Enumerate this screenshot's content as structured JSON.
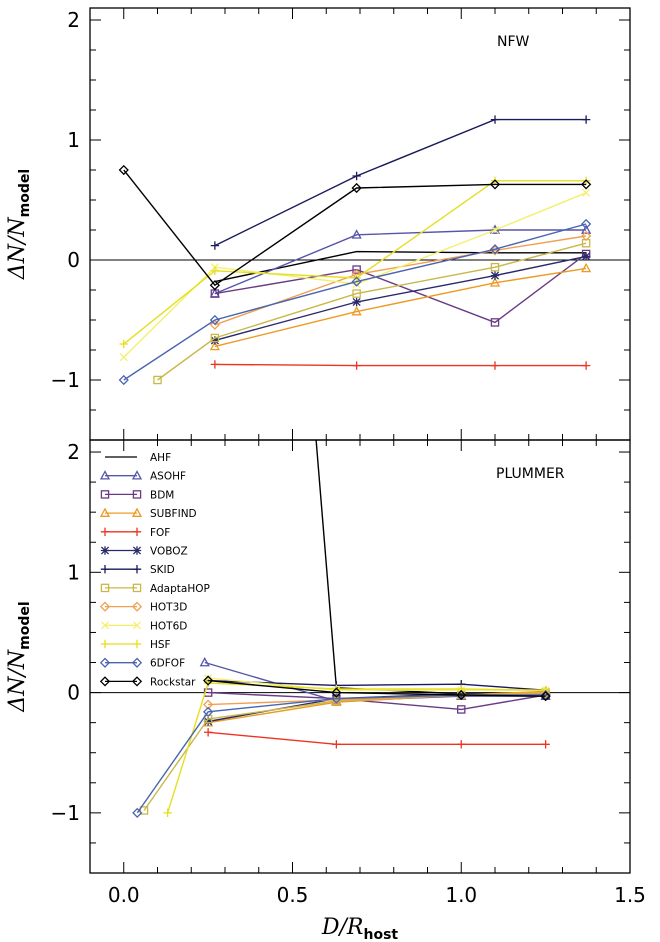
{
  "chart_data": {
    "type": "line",
    "x_tick_labels": [
      "0.0",
      "0.5",
      "1.0",
      "1.5"
    ],
    "x_ticks": [
      0,
      0.5,
      1.0,
      1.5
    ],
    "y_tick_labels": [
      "2",
      "1",
      "0",
      "−1"
    ],
    "y_ticks": [
      2,
      1,
      0,
      -1
    ],
    "xlim": [
      -0.1,
      1.5
    ],
    "xlabel": {
      "main": "D/R",
      "sub": "host"
    },
    "ylabel": {
      "main": "ΔN/N",
      "sub": "model"
    },
    "legend": {
      "placement": "upper-left of lower panel",
      "entries": [
        "AHF",
        "ASOHF",
        "BDM",
        "SUBFIND",
        "FOF",
        "VOBOZ",
        "SKID",
        "AdaptaHOP",
        "HOT3D",
        "HOT6D",
        "HSF",
        "6DFOF",
        "Rockstar"
      ]
    },
    "styles": {
      "AHF": {
        "color": "#000000",
        "marker": "none"
      },
      "ASOHF": {
        "color": "#5555aa",
        "marker": "triangle"
      },
      "BDM": {
        "color": "#6a3a86",
        "marker": "square"
      },
      "SUBFIND": {
        "color": "#ee9a22",
        "marker": "triangle"
      },
      "FOF": {
        "color": "#ee3322",
        "marker": "plus"
      },
      "VOBOZ": {
        "color": "#2a2a6a",
        "marker": "star"
      },
      "SKID": {
        "color": "#1a1a5a",
        "marker": "plus"
      },
      "AdaptaHOP": {
        "color": "#c8b84a",
        "marker": "square"
      },
      "HOT3D": {
        "color": "#f0a050",
        "marker": "diamond"
      },
      "HOT6D": {
        "color": "#f3f070",
        "marker": "x"
      },
      "HSF": {
        "color": "#e6de20",
        "marker": "plus"
      },
      "6DFOF": {
        "color": "#4a64b0",
        "marker": "diamond"
      },
      "Rockstar": {
        "color": "#000000",
        "marker": "diamond"
      }
    },
    "panels": [
      {
        "title": "NFW",
        "ylim": [
          -1.5,
          2.1
        ],
        "series": [
          {
            "name": "AHF",
            "points": [
              [
                0.27,
                -0.18
              ],
              [
                0.69,
                0.07
              ],
              [
                1.1,
                0.06
              ],
              [
                1.37,
                0.06
              ]
            ]
          },
          {
            "name": "ASOHF",
            "points": [
              [
                0.27,
                -0.28
              ],
              [
                0.69,
                0.21
              ],
              [
                1.1,
                0.25
              ],
              [
                1.37,
                0.25
              ]
            ]
          },
          {
            "name": "BDM",
            "points": [
              [
                0.27,
                -0.28
              ],
              [
                0.69,
                -0.08
              ],
              [
                1.1,
                -0.52
              ],
              [
                1.37,
                0.05
              ]
            ]
          },
          {
            "name": "SUBFIND",
            "points": [
              [
                0.27,
                -0.72
              ],
              [
                0.69,
                -0.43
              ],
              [
                1.1,
                -0.19
              ],
              [
                1.37,
                -0.07
              ]
            ]
          },
          {
            "name": "FOF",
            "points": [
              [
                0.27,
                -0.87
              ],
              [
                0.69,
                -0.88
              ],
              [
                1.1,
                -0.88
              ],
              [
                1.37,
                -0.88
              ]
            ]
          },
          {
            "name": "VOBOZ",
            "points": [
              [
                0.27,
                -0.67
              ],
              [
                0.69,
                -0.35
              ],
              [
                1.1,
                -0.13
              ],
              [
                1.37,
                0.03
              ]
            ]
          },
          {
            "name": "SKID",
            "points": [
              [
                0.27,
                0.12
              ],
              [
                0.69,
                0.7
              ],
              [
                1.1,
                1.17
              ],
              [
                1.37,
                1.17
              ]
            ]
          },
          {
            "name": "AdaptaHOP",
            "points": [
              [
                0.1,
                -1.0
              ],
              [
                0.27,
                -0.65
              ],
              [
                0.69,
                -0.28
              ],
              [
                1.1,
                -0.06
              ],
              [
                1.37,
                0.14
              ]
            ]
          },
          {
            "name": "HOT3D",
            "points": [
              [
                0.27,
                -0.54
              ],
              [
                0.69,
                -0.12
              ],
              [
                1.1,
                0.08
              ],
              [
                1.37,
                0.2
              ]
            ]
          },
          {
            "name": "HOT6D",
            "points": [
              [
                0.0,
                -0.81
              ],
              [
                0.27,
                -0.06
              ],
              [
                0.69,
                -0.2
              ],
              [
                1.1,
                0.25
              ],
              [
                1.37,
                0.56
              ]
            ]
          },
          {
            "name": "HSF",
            "points": [
              [
                0.0,
                -0.7
              ],
              [
                0.27,
                -0.09
              ],
              [
                0.69,
                -0.15
              ],
              [
                1.1,
                0.66
              ],
              [
                1.37,
                0.66
              ]
            ]
          },
          {
            "name": "6DFOF",
            "points": [
              [
                0.0,
                -1.0
              ],
              [
                0.27,
                -0.5
              ],
              [
                0.69,
                -0.18
              ],
              [
                1.1,
                0.09
              ],
              [
                1.37,
                0.3
              ]
            ]
          },
          {
            "name": "Rockstar",
            "points": [
              [
                0.0,
                0.75
              ],
              [
                0.27,
                -0.21
              ],
              [
                0.69,
                0.6
              ],
              [
                1.1,
                0.63
              ],
              [
                1.37,
                0.63
              ]
            ]
          }
        ]
      },
      {
        "title": "PLUMMER",
        "ylim": [
          -1.5,
          2.1
        ],
        "series": [
          {
            "name": "AHF",
            "points": [
              [
                0.57,
                2.1
              ],
              [
                0.63,
                0.04
              ],
              [
                1.0,
                -0.01
              ],
              [
                1.25,
                -0.01
              ]
            ]
          },
          {
            "name": "ASOHF",
            "points": [
              [
                0.24,
                0.25
              ],
              [
                0.63,
                -0.07
              ],
              [
                1.0,
                -0.03
              ],
              [
                1.25,
                -0.03
              ]
            ]
          },
          {
            "name": "BDM",
            "points": [
              [
                0.25,
                0.0
              ],
              [
                0.63,
                -0.05
              ],
              [
                1.0,
                -0.14
              ],
              [
                1.25,
                -0.02
              ]
            ]
          },
          {
            "name": "SUBFIND",
            "points": [
              [
                0.25,
                -0.25
              ],
              [
                0.63,
                -0.08
              ],
              [
                1.0,
                -0.02
              ],
              [
                1.25,
                0.01
              ]
            ]
          },
          {
            "name": "FOF",
            "points": [
              [
                0.25,
                -0.33
              ],
              [
                0.63,
                -0.43
              ],
              [
                1.0,
                -0.43
              ],
              [
                1.25,
                -0.43
              ]
            ]
          },
          {
            "name": "VOBOZ",
            "points": [
              [
                0.25,
                -0.24
              ],
              [
                0.63,
                -0.05
              ],
              [
                1.0,
                -0.01
              ],
              [
                1.25,
                -0.02
              ]
            ]
          },
          {
            "name": "SKID",
            "points": [
              [
                0.25,
                0.1
              ],
              [
                0.63,
                0.06
              ],
              [
                1.0,
                0.07
              ],
              [
                1.25,
                0.02
              ]
            ]
          },
          {
            "name": "AdaptaHOP",
            "points": [
              [
                0.06,
                -0.98
              ],
              [
                0.25,
                -0.22
              ],
              [
                0.63,
                -0.07
              ],
              [
                1.0,
                -0.02
              ],
              [
                1.25,
                0.0
              ]
            ]
          },
          {
            "name": "HOT3D",
            "points": [
              [
                0.25,
                -0.1
              ],
              [
                0.63,
                -0.06
              ],
              [
                1.0,
                -0.02
              ],
              [
                1.25,
                -0.01
              ]
            ]
          },
          {
            "name": "HOT6D",
            "points": [
              [
                0.25,
                0.12
              ],
              [
                0.63,
                0.02
              ],
              [
                1.0,
                0.02
              ],
              [
                1.25,
                0.02
              ]
            ]
          },
          {
            "name": "HSF",
            "points": [
              [
                0.13,
                -1.0
              ],
              [
                0.25,
                0.08
              ],
              [
                0.63,
                0.03
              ],
              [
                1.0,
                0.03
              ],
              [
                1.25,
                0.02
              ]
            ]
          },
          {
            "name": "6DFOF",
            "points": [
              [
                0.04,
                -1.0
              ],
              [
                0.25,
                -0.16
              ],
              [
                0.63,
                -0.05
              ],
              [
                1.0,
                -0.02
              ],
              [
                1.25,
                -0.02
              ]
            ]
          },
          {
            "name": "Rockstar",
            "points": [
              [
                0.25,
                0.1
              ],
              [
                0.63,
                0.0
              ],
              [
                1.0,
                -0.02
              ],
              [
                1.25,
                -0.03
              ]
            ]
          }
        ]
      }
    ]
  }
}
